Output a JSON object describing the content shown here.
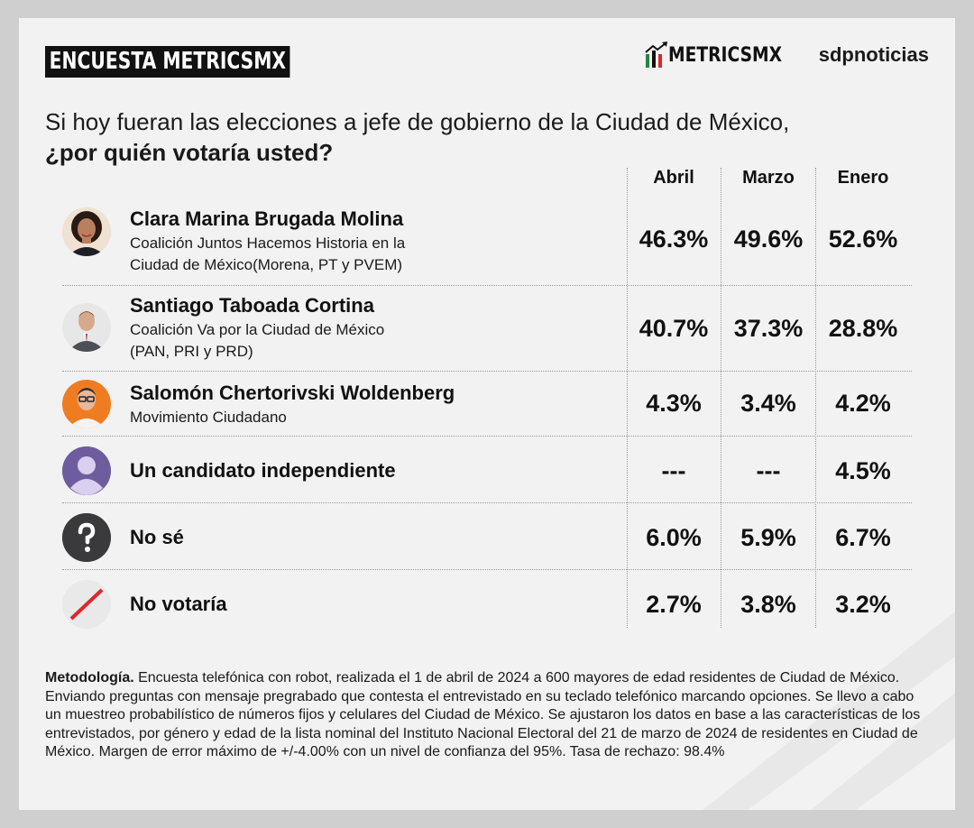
{
  "header": {
    "tag": "ENCUESTA METRICSMX",
    "logo_metrics": "METRICSMX",
    "logo_sdp": "sdpnoticias"
  },
  "question": {
    "line1": "Si hoy fueran las elecciones a jefe de gobierno de la Ciudad de México,",
    "line2": "¿por quién votaría usted?"
  },
  "chart_data": {
    "type": "table",
    "columns": [
      "Abril",
      "Marzo",
      "Enero"
    ],
    "rows": [
      {
        "name": "Clara Marina Brugada Molina",
        "sub1": "Coalición Juntos Hacemos Historia en la",
        "sub2": "Ciudad de México(Morena, PT y PVEM)",
        "avatar": "candidate-photo-woman",
        "values": [
          "46.3%",
          "49.6%",
          "52.6%"
        ]
      },
      {
        "name": "Santiago Taboada Cortina",
        "sub1": "Coalición Va por la Ciudad de México",
        "sub2": "(PAN, PRI y PRD)",
        "avatar": "candidate-photo-man",
        "values": [
          "40.7%",
          "37.3%",
          "28.8%"
        ]
      },
      {
        "name": "Salomón Chertorivski Woldenberg",
        "sub1": "Movimiento Ciudadano",
        "sub2": "",
        "avatar": "candidate-photo-man-glasses",
        "values": [
          "4.3%",
          "3.4%",
          "4.2%"
        ]
      },
      {
        "name": "Un candidato independiente",
        "sub1": "",
        "sub2": "",
        "avatar": "person-icon",
        "values": [
          "---",
          "---",
          "4.5%"
        ]
      },
      {
        "name": "No sé",
        "sub1": "",
        "sub2": "",
        "avatar": "question-icon",
        "values": [
          "6.0%",
          "5.9%",
          "6.7%"
        ]
      },
      {
        "name": "No votaría",
        "sub1": "",
        "sub2": "",
        "avatar": "slash-icon",
        "values": [
          "2.7%",
          "3.8%",
          "3.2%"
        ]
      }
    ]
  },
  "methodology": {
    "label": "Metodología.",
    "text": " Encuesta telefónica con robot, realizada el 1 de abril de 2024 a 600 mayores de edad residentes de Ciudad de México. Enviando preguntas con mensaje pregrabado que contesta el entrevistado en su teclado telefónico marcando opciones. Se llevo a cabo un muestreo probabilístico de números fijos y celulares del Ciudad de México. Se ajustaron los datos en base a las características de los entrevistados, por género y edad de la lista nominal del Instituto Nacional Electoral del 21 de marzo de 2024 de residentes en Ciudad de México. Margen de error máximo de +/-4.00% con un nivel de confianza del 95%. Tasa de rechazo: 98.4%"
  },
  "colors": {
    "accent_red": "#e0262b",
    "accent_green": "#1f8a3a",
    "avatar_purple": "#6f5c9e",
    "dark_icon": "#3a3a3c"
  }
}
